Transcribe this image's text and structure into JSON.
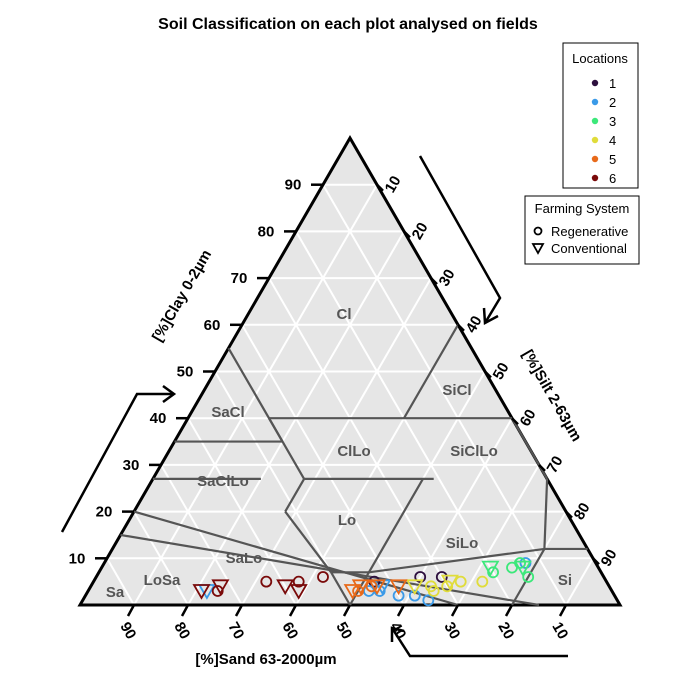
{
  "chart_data": {
    "type": "scatter",
    "subtype": "ternary",
    "title": "Soil Classification on each plot analysed on fields",
    "axes": {
      "clay": {
        "label": "[%]Clay 0-2µm",
        "ticks": [
          10,
          20,
          30,
          40,
          50,
          60,
          70,
          80,
          90
        ]
      },
      "silt": {
        "label": "[%]Silt 2-63µm",
        "ticks": [
          10,
          20,
          30,
          40,
          50,
          60,
          70,
          80,
          90
        ]
      },
      "sand": {
        "label": "[%]Sand 63-2000µm",
        "ticks": [
          90,
          80,
          70,
          60,
          50,
          40,
          30,
          20,
          10
        ]
      }
    },
    "grid": true,
    "regions": [
      "Cl",
      "SiCl",
      "SaCl",
      "ClLo",
      "SiClLo",
      "SaClLo",
      "Lo",
      "SiLo",
      "SaLo",
      "LoSa",
      "Sa",
      "Si"
    ],
    "legend_locations": {
      "title": "Locations",
      "placement": "top-right",
      "items": [
        {
          "label": "1",
          "color": "#2d0f3e"
        },
        {
          "label": "2",
          "color": "#3a9ae8"
        },
        {
          "label": "3",
          "color": "#3ce87a"
        },
        {
          "label": "4",
          "color": "#e0dc3a"
        },
        {
          "label": "5",
          "color": "#e86a1a"
        },
        {
          "label": "6",
          "color": "#7a0a0a"
        }
      ]
    },
    "legend_system": {
      "title": "Farming System",
      "placement": "right",
      "items": [
        {
          "label": "Regenerative",
          "shape": "circle"
        },
        {
          "label": "Conventional",
          "shape": "triangle-down"
        }
      ]
    },
    "series": [
      {
        "location": "1",
        "system": "Regenerative",
        "points": [
          {
            "clay": 5,
            "silt": 52,
            "sand": 43
          },
          {
            "clay": 6,
            "silt": 60,
            "sand": 34
          },
          {
            "clay": 6,
            "silt": 64,
            "sand": 30
          }
        ]
      },
      {
        "location": "2",
        "system": "Regenerative",
        "points": [
          {
            "clay": 1,
            "silt": 64,
            "sand": 35
          },
          {
            "clay": 2,
            "silt": 58,
            "sand": 40
          },
          {
            "clay": 2,
            "silt": 61,
            "sand": 37
          },
          {
            "clay": 3,
            "silt": 52,
            "sand": 45
          },
          {
            "clay": 3,
            "silt": 54,
            "sand": 43
          },
          {
            "clay": 9,
            "silt": 78,
            "sand": 13
          }
        ]
      },
      {
        "location": "2",
        "system": "Conventional",
        "points": [
          {
            "clay": 3,
            "silt": 22,
            "sand": 75
          },
          {
            "clay": 4,
            "silt": 54,
            "sand": 42
          }
        ]
      },
      {
        "location": "3",
        "system": "Regenerative",
        "points": [
          {
            "clay": 6,
            "silt": 80,
            "sand": 14
          },
          {
            "clay": 8,
            "silt": 76,
            "sand": 16
          },
          {
            "clay": 9,
            "silt": 77,
            "sand": 14
          },
          {
            "clay": 7,
            "silt": 73,
            "sand": 20
          }
        ]
      },
      {
        "location": "3",
        "system": "Conventional",
        "points": [
          {
            "clay": 8,
            "silt": 72,
            "sand": 20
          },
          {
            "clay": 8,
            "silt": 78,
            "sand": 14
          }
        ]
      },
      {
        "location": "4",
        "system": "Regenerative",
        "points": [
          {
            "clay": 3,
            "silt": 64,
            "sand": 33
          },
          {
            "clay": 4,
            "silt": 63,
            "sand": 33
          },
          {
            "clay": 4,
            "silt": 66,
            "sand": 30
          },
          {
            "clay": 5,
            "silt": 68,
            "sand": 27
          },
          {
            "clay": 5,
            "silt": 72,
            "sand": 23
          }
        ]
      },
      {
        "location": "4",
        "system": "Conventional",
        "points": [
          {
            "clay": 4,
            "silt": 60,
            "sand": 36
          },
          {
            "clay": 5,
            "silt": 66,
            "sand": 29
          }
        ]
      },
      {
        "location": "5",
        "system": "Regenerative",
        "points": [
          {
            "clay": 3,
            "silt": 50,
            "sand": 47
          },
          {
            "clay": 4,
            "silt": 52,
            "sand": 44
          }
        ]
      },
      {
        "location": "5",
        "system": "Conventional",
        "points": [
          {
            "clay": 3,
            "silt": 49,
            "sand": 48
          },
          {
            "clay": 4,
            "silt": 50,
            "sand": 46
          },
          {
            "clay": 4,
            "silt": 53,
            "sand": 43
          },
          {
            "clay": 4,
            "silt": 57,
            "sand": 39
          }
        ]
      },
      {
        "location": "6",
        "system": "Regenerative",
        "points": [
          {
            "clay": 3,
            "silt": 24,
            "sand": 73
          },
          {
            "clay": 5,
            "silt": 32,
            "sand": 63
          },
          {
            "clay": 5,
            "silt": 38,
            "sand": 57
          },
          {
            "clay": 6,
            "silt": 42,
            "sand": 52
          }
        ]
      },
      {
        "location": "6",
        "system": "Conventional",
        "points": [
          {
            "clay": 3,
            "silt": 21,
            "sand": 76
          },
          {
            "clay": 4,
            "silt": 24,
            "sand": 72
          },
          {
            "clay": 4,
            "silt": 36,
            "sand": 60
          },
          {
            "clay": 3,
            "silt": 39,
            "sand": 58
          }
        ]
      }
    ]
  }
}
